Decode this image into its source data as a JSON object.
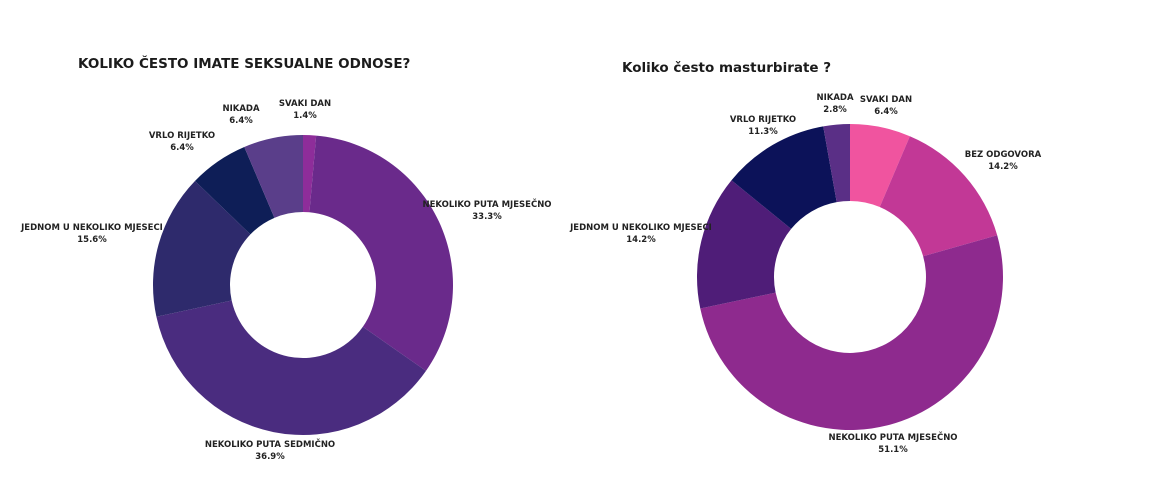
{
  "chart_data": [
    {
      "type": "pie",
      "title": "KOLIKO ČESTO IMATE SEKSUALNE ODNOSE?",
      "slices": [
        {
          "label": "SVAKI DAN",
          "value": 1.4,
          "display": "1.4%",
          "color": "#8e2d9a"
        },
        {
          "label": "NEKOLIKO PUTA MJESEČNO",
          "value": 33.3,
          "display": "33.3%",
          "color": "#6a2a8b"
        },
        {
          "label": "NEKOLIKO PUTA SEDMIČNO",
          "value": 36.9,
          "display": "36.9%",
          "color": "#4a2c7f"
        },
        {
          "label": "JEDNOM U NEKOLIKO MJESECI",
          "value": 15.6,
          "display": "15.6%",
          "color": "#2e2a6c"
        },
        {
          "label": "VRLO RIJETKO",
          "value": 6.4,
          "display": "6.4%",
          "color": "#0e1e57"
        },
        {
          "label": "NIKADA",
          "value": 6.4,
          "display": "6.4%",
          "color": "#5a3e8a"
        }
      ]
    },
    {
      "type": "pie",
      "title": "Koliko često masturbirate ?",
      "slices": [
        {
          "label": "SVAKI DAN",
          "value": 6.4,
          "display": "6.4%",
          "color": "#f0549f"
        },
        {
          "label": "BEZ ODGOVORA",
          "value": 14.2,
          "display": "14.2%",
          "color": "#c23896"
        },
        {
          "label": "NEKOLIKO PUTA MJESEČNO",
          "value": 51.1,
          "display": "51.1%",
          "color": "#8e2a8e"
        },
        {
          "label": "JEDNOM U NEKOLIKO MJESECI",
          "value": 14.2,
          "display": "14.2%",
          "color": "#4f1d78"
        },
        {
          "label": "VRLO RIJETKO",
          "value": 11.3,
          "display": "11.3%",
          "color": "#0c1259"
        },
        {
          "label": "NIKADA",
          "value": 2.8,
          "display": "2.8%",
          "color": "#5a2f86"
        }
      ]
    }
  ]
}
